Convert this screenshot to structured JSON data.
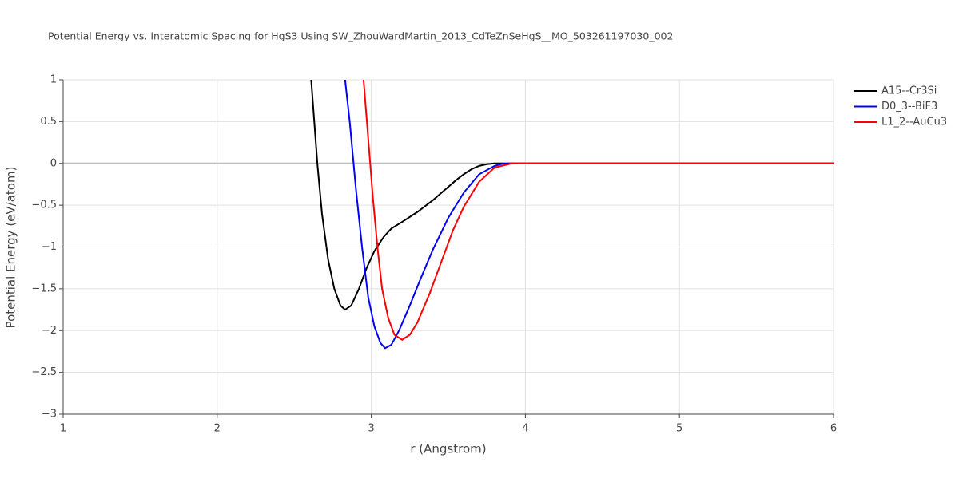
{
  "chart_data": {
    "type": "line",
    "title": "Potential Energy vs. Interatomic Spacing for HgS3 Using SW_ZhouWardMartin_2013_CdTeZnSeHgS__MO_503261197030_002",
    "x_label": "r (Angstrom)",
    "y_label": "Potential Energy (eV/atom)",
    "xlim": [
      1,
      6
    ],
    "ylim": [
      -3,
      1
    ],
    "xticks": [
      1,
      2,
      3,
      4,
      5,
      6
    ],
    "yticks": [
      {
        "value": -3,
        "label": "−3"
      },
      {
        "value": -2.5,
        "label": "−2.5"
      },
      {
        "value": -2,
        "label": "−2"
      },
      {
        "value": -1.5,
        "label": "−1.5"
      },
      {
        "value": -1,
        "label": "−1"
      },
      {
        "value": -0.5,
        "label": "−0.5"
      },
      0,
      0.5,
      1
    ],
    "grid": true,
    "legend": "right",
    "series": [
      {
        "name": "A15--Cr3Si",
        "color": "#000000",
        "x": [
          2.61,
          2.65,
          2.68,
          2.72,
          2.76,
          2.8,
          2.83,
          2.87,
          2.92,
          2.97,
          3.02,
          3.08,
          3.13,
          3.2,
          3.3,
          3.4,
          3.5,
          3.55,
          3.6,
          3.65,
          3.7,
          3.75,
          3.8,
          6
        ],
        "values": [
          1,
          0,
          -0.6,
          -1.15,
          -1.5,
          -1.7,
          -1.75,
          -1.7,
          -1.5,
          -1.25,
          -1.05,
          -0.88,
          -0.78,
          -0.7,
          -0.58,
          -0.44,
          -0.28,
          -0.2,
          -0.13,
          -0.07,
          -0.03,
          -0.01,
          0,
          0
        ]
      },
      {
        "name": "D0_3--BiF3",
        "color": "#0000ff",
        "x": [
          2.83,
          2.86,
          2.9,
          2.94,
          2.98,
          3.02,
          3.06,
          3.09,
          3.13,
          3.18,
          3.25,
          3.32,
          3.4,
          3.5,
          3.6,
          3.7,
          3.8,
          3.85,
          3.9,
          6
        ],
        "values": [
          1,
          0.5,
          -0.3,
          -1,
          -1.6,
          -1.95,
          -2.15,
          -2.21,
          -2.17,
          -2,
          -1.7,
          -1.38,
          -1.03,
          -0.65,
          -0.35,
          -0.13,
          -0.03,
          -0.005,
          0,
          0
        ]
      },
      {
        "name": "L1_2--AuCu3",
        "color": "#ff0000",
        "x": [
          2.95,
          2.98,
          3.01,
          3.04,
          3.07,
          3.11,
          3.15,
          3.2,
          3.25,
          3.3,
          3.38,
          3.45,
          3.53,
          3.6,
          3.7,
          3.8,
          3.9,
          3.95,
          6
        ],
        "values": [
          1,
          0.3,
          -0.4,
          -1,
          -1.5,
          -1.85,
          -2.05,
          -2.11,
          -2.05,
          -1.9,
          -1.55,
          -1.2,
          -0.8,
          -0.52,
          -0.22,
          -0.05,
          -0.005,
          0,
          0
        ]
      }
    ]
  }
}
